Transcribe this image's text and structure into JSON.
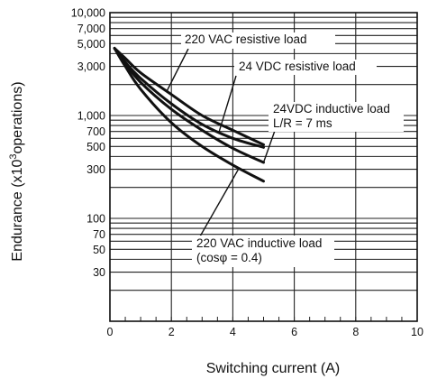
{
  "chart_data": {
    "type": "line",
    "xlabel": "Switching current (A)",
    "ylabel_main": "Endurance (x10",
    "ylabel_sup": "3",
    "ylabel_tail": "operations)",
    "xlim": [
      0,
      10
    ],
    "ylim": [
      10,
      10000
    ],
    "yscale": "log",
    "grid": true,
    "x_ticks": [
      0,
      2,
      4,
      6,
      8,
      10
    ],
    "x_tick_labels": [
      "0",
      "2",
      "4",
      "6",
      "8",
      "10"
    ],
    "y_ticks": [
      10000,
      7000,
      5000,
      3000,
      1000,
      700,
      500,
      300,
      100,
      70,
      50,
      30
    ],
    "y_tick_labels": [
      "10,000",
      "7,000",
      "5,000",
      "3,000",
      "1,000",
      "700",
      "500",
      "300",
      "100",
      "70",
      "50",
      "30"
    ],
    "y_gridlines": [
      10,
      20,
      30,
      40,
      50,
      60,
      70,
      80,
      90,
      100,
      200,
      300,
      400,
      500,
      600,
      700,
      800,
      900,
      1000,
      2000,
      3000,
      4000,
      5000,
      6000,
      7000,
      8000,
      9000,
      10000
    ],
    "series": [
      {
        "name": "220 VAC resistive load",
        "x": [
          0.15,
          0.5,
          1,
          2,
          3,
          4,
          5
        ],
        "y": [
          4500,
          3600,
          2600,
          1600,
          1000,
          720,
          520
        ]
      },
      {
        "name": "24 VDC resistive load",
        "x": [
          0.15,
          0.5,
          1,
          2,
          3,
          4,
          5
        ],
        "y": [
          4500,
          3300,
          2300,
          1300,
          820,
          600,
          490
        ]
      },
      {
        "name": "24VDC inductive load",
        "x": [
          0.15,
          0.5,
          1,
          2,
          3,
          4,
          5
        ],
        "y": [
          4500,
          3200,
          2100,
          1150,
          720,
          480,
          350
        ]
      },
      {
        "name": "220 VAC inductive load",
        "x": [
          0.15,
          0.5,
          1,
          2,
          3,
          4,
          5
        ],
        "y": [
          4500,
          3000,
          1800,
          850,
          500,
          330,
          230
        ]
      }
    ],
    "annotations": [
      {
        "lines": [
          "220 VAC resistive load"
        ],
        "series": 0
      },
      {
        "lines": [
          "24 VDC resistive load"
        ],
        "series": 1
      },
      {
        "lines": [
          "24VDC inductive load",
          "L/R = 7 ms"
        ],
        "series": 2
      },
      {
        "lines": [
          "220 VAC inductive load",
          "(cosφ = 0.4)"
        ],
        "series": 3
      }
    ]
  }
}
